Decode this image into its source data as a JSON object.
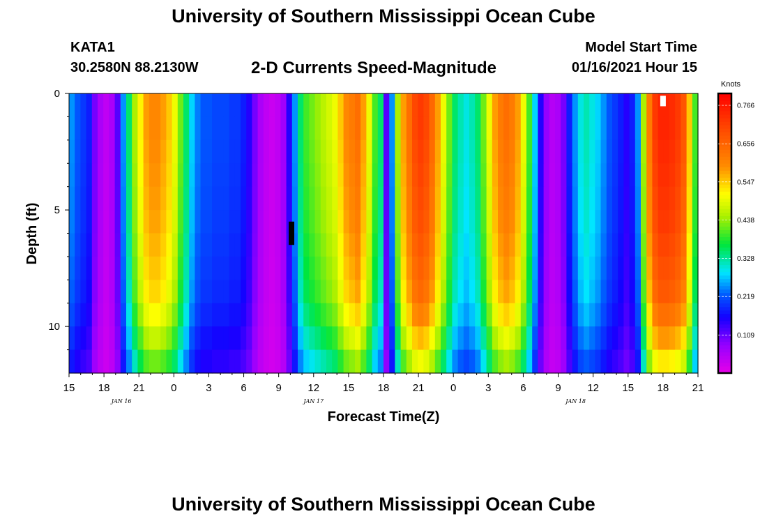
{
  "header": {
    "title": "University of Southern Mississippi Ocean Cube",
    "station": "KATA1",
    "coords": "30.2580N 88.2130W",
    "chart_title": "2-D Currents Speed-Magnitude",
    "model_start_label": "Model Start Time",
    "model_start_value": "01/16/2021 Hour 15"
  },
  "footer": {
    "title": "University of Southern Mississippi Ocean Cube"
  },
  "chart_data": {
    "type": "heatmap",
    "title": "2-D Currents Speed-Magnitude",
    "xlabel": "Forecast Time(Z)",
    "ylabel": "Depth (ft)",
    "x_range_hours": [
      0,
      54
    ],
    "y_range_ft": [
      0,
      12
    ],
    "x_ticks": [
      "15",
      "18",
      "21",
      "0",
      "3",
      "6",
      "9",
      "12",
      "15",
      "18",
      "21",
      "0",
      "3",
      "6",
      "9",
      "12",
      "15",
      "18",
      "21"
    ],
    "date_labels": [
      {
        "label": "JAN 16",
        "hour": 4.5
      },
      {
        "label": "JAN 17",
        "hour": 21
      },
      {
        "label": "JAN 18",
        "hour": 43.5
      }
    ],
    "y_ticks": [
      "0",
      "5",
      "10"
    ],
    "colorbar": {
      "units": "Knots",
      "min": 0.0,
      "max": 0.8,
      "labels": [
        "0.766",
        "0.656",
        "0.547",
        "0.438",
        "0.328",
        "0.219",
        "0.109"
      ],
      "label_values": [
        0.766,
        0.656,
        0.547,
        0.438,
        0.328,
        0.219,
        0.109
      ]
    },
    "surface_speed_knots": [
      0.25,
      0.22,
      0.2,
      0.18,
      0.1,
      0.06,
      0.04,
      0.06,
      0.12,
      0.25,
      0.35,
      0.45,
      0.52,
      0.58,
      0.6,
      0.6,
      0.58,
      0.55,
      0.5,
      0.42,
      0.35,
      0.28,
      0.24,
      0.22,
      0.22,
      0.21,
      0.21,
      0.21,
      0.2,
      0.2,
      0.18,
      0.15,
      0.1,
      0.06,
      0.04,
      0.03,
      0.04,
      0.07,
      0.15,
      0.25,
      0.35,
      0.4,
      0.42,
      0.44,
      0.46,
      0.48,
      0.5,
      0.55,
      0.6,
      0.62,
      0.64,
      0.58,
      0.5,
      0.4,
      0.35,
      0.12,
      0.25,
      0.45,
      0.58,
      0.64,
      0.7,
      0.72,
      0.7,
      0.65,
      0.58,
      0.5,
      0.42,
      0.35,
      0.32,
      0.3,
      0.32,
      0.35,
      0.42,
      0.5,
      0.58,
      0.62,
      0.64,
      0.62,
      0.58,
      0.5,
      0.4,
      0.28,
      0.15,
      0.08,
      0.05,
      0.06,
      0.1,
      0.18,
      0.25,
      0.3,
      0.32,
      0.3,
      0.28,
      0.25,
      0.22,
      0.2,
      0.18,
      0.15,
      0.18,
      0.25,
      0.45,
      0.62,
      0.72,
      0.75,
      0.75,
      0.74,
      0.72,
      0.68,
      0.55,
      0.4
    ],
    "depth_profile": [
      1.0,
      1.0,
      0.99,
      0.98,
      0.97,
      0.96,
      0.94,
      0.92,
      0.9,
      0.85,
      0.78,
      0.7
    ],
    "missing_markers": [
      {
        "hour": 19.1,
        "depth_from_ft": 5.5,
        "depth_to_ft": 6.5,
        "color": "#000000"
      },
      {
        "hour": 51.0,
        "depth_from_ft": 0.1,
        "depth_to_ft": 0.55,
        "color": "#ffffff"
      }
    ]
  }
}
